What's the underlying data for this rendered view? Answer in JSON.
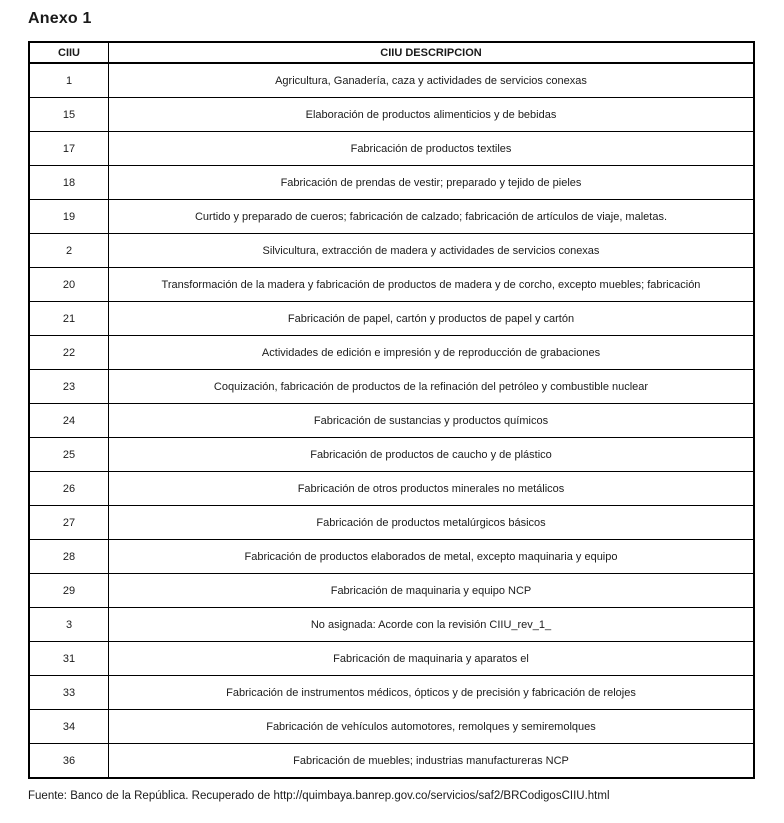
{
  "title": "Anexo 1",
  "table": {
    "headers": {
      "code": "CIIU",
      "description": "CIIU DESCRIPCION"
    },
    "rows": [
      {
        "code": "1",
        "desc": "Agricultura, Ganadería, caza y actividades de servicios conexas"
      },
      {
        "code": "15",
        "desc": "Elaboración de productos alimenticios y de bebidas"
      },
      {
        "code": "17",
        "desc": "Fabricación de productos textiles"
      },
      {
        "code": "18",
        "desc": "Fabricación de prendas de vestir; preparado y tejido de pieles"
      },
      {
        "code": "19",
        "desc": "Curtido y preparado de cueros; fabricación de calzado; fabricación de artículos de viaje, maletas."
      },
      {
        "code": "2",
        "desc": "Silvicultura, extracción de madera y actividades de servicios conexas"
      },
      {
        "code": "20",
        "desc": "Transformación de la madera y fabricación de productos de madera y de corcho, excepto muebles; fabricación"
      },
      {
        "code": "21",
        "desc": "Fabricación de papel, cartón y productos de papel y cartón"
      },
      {
        "code": "22",
        "desc": "Actividades de edición e impresión y de reproducción de grabaciones"
      },
      {
        "code": "23",
        "desc": "Coquización, fabricación de productos de la refinación del petróleo y combustible nuclear"
      },
      {
        "code": "24",
        "desc": "Fabricación de sustancias y productos químicos"
      },
      {
        "code": "25",
        "desc": "Fabricación de productos de caucho y de plástico"
      },
      {
        "code": "26",
        "desc": "Fabricación de otros productos minerales no metálicos"
      },
      {
        "code": "27",
        "desc": "Fabricación de productos metalúrgicos básicos"
      },
      {
        "code": "28",
        "desc": "Fabricación de productos elaborados de metal, excepto maquinaria y equipo"
      },
      {
        "code": "29",
        "desc": "Fabricación de maquinaria y equipo NCP"
      },
      {
        "code": "3",
        "desc": "No asignada: Acorde con la revisión CIIU_rev_1_"
      },
      {
        "code": "31",
        "desc": "Fabricación de maquinaria y aparatos el"
      },
      {
        "code": "33",
        "desc": "Fabricación de instrumentos médicos, ópticos y de precisión y fabricación de relojes"
      },
      {
        "code": "34",
        "desc": "Fabricación de vehículos automotores, remolques y semiremolques"
      },
      {
        "code": "36",
        "desc": "Fabricación de muebles; industrias manufactureras NCP"
      }
    ]
  },
  "footer": {
    "source_text": "Fuente: Banco de la República. Recuperado de http://quimbaya.banrep.gov.co/servicios/saf2/BRCodigosCIIU.html"
  },
  "colors": {
    "text": "#1b1b1b",
    "border": "#000000",
    "background": "#ffffff"
  }
}
